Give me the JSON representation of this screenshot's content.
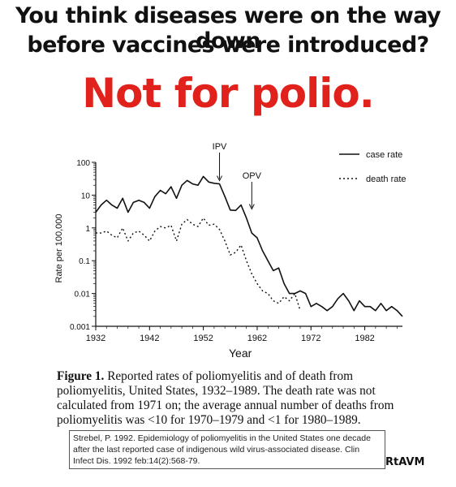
{
  "headline": {
    "line1": "You think diseases were on the way down",
    "line2": "before vaccines were introduced?",
    "line3": "Not for polio."
  },
  "chart_data": {
    "type": "line",
    "ylabel": "Rate per 100,000",
    "xlabel": "Year",
    "xlim": [
      1932,
      1989
    ],
    "ylim": [
      0.001,
      100
    ],
    "yscale": "log",
    "x_ticks": [
      "1932",
      "1942",
      "1952",
      "1962",
      "1972",
      "1982"
    ],
    "y_ticks": [
      "100",
      "10",
      "1",
      "0.1",
      "0.01",
      "0.001"
    ],
    "legend_placement": "top-right",
    "annotations": [
      {
        "text": "IPV",
        "x": 1955,
        "y": 22
      },
      {
        "text": "OPV",
        "x": 1961,
        "y": 3
      }
    ],
    "series": [
      {
        "name": "case rate",
        "style": "solid",
        "x": [
          1932,
          1933,
          1934,
          1935,
          1936,
          1937,
          1938,
          1939,
          1940,
          1941,
          1942,
          1943,
          1944,
          1945,
          1946,
          1947,
          1948,
          1949,
          1950,
          1951,
          1952,
          1953,
          1954,
          1955,
          1956,
          1957,
          1958,
          1959,
          1960,
          1961,
          1962,
          1963,
          1964,
          1965,
          1966,
          1967,
          1968,
          1969,
          1970,
          1971,
          1972,
          1973,
          1974,
          1975,
          1976,
          1977,
          1978,
          1979,
          1980,
          1981,
          1982,
          1983,
          1984,
          1985,
          1986,
          1987,
          1988,
          1989
        ],
        "y": [
          3,
          5,
          7,
          5,
          4,
          8,
          3,
          6,
          7,
          6,
          4,
          9,
          14,
          11,
          18,
          8,
          20,
          28,
          22,
          20,
          37,
          25,
          23,
          22,
          9,
          3.5,
          3.4,
          5,
          2,
          0.7,
          0.5,
          0.2,
          0.1,
          0.05,
          0.06,
          0.02,
          0.01,
          0.01,
          0.012,
          0.01,
          0.004,
          0.005,
          0.004,
          0.003,
          0.004,
          0.007,
          0.01,
          0.006,
          0.003,
          0.006,
          0.004,
          0.004,
          0.003,
          0.005,
          0.003,
          0.004,
          0.003,
          0.002
        ]
      },
      {
        "name": "death rate",
        "style": "dotted",
        "x": [
          1932,
          1933,
          1934,
          1935,
          1936,
          1937,
          1938,
          1939,
          1940,
          1941,
          1942,
          1943,
          1944,
          1945,
          1946,
          1947,
          1948,
          1949,
          1950,
          1951,
          1952,
          1953,
          1954,
          1955,
          1956,
          1957,
          1958,
          1959,
          1960,
          1961,
          1962,
          1963,
          1964,
          1965,
          1966,
          1967,
          1968,
          1969,
          1970
        ],
        "y": [
          0.7,
          0.7,
          0.8,
          0.6,
          0.5,
          1,
          0.4,
          0.7,
          0.8,
          0.6,
          0.4,
          0.8,
          1.1,
          1,
          1.2,
          0.4,
          1.3,
          1.8,
          1.3,
          1.1,
          2,
          1.2,
          1.3,
          0.9,
          0.4,
          0.15,
          0.18,
          0.3,
          0.1,
          0.04,
          0.02,
          0.012,
          0.01,
          0.006,
          0.005,
          0.008,
          0.006,
          0.01,
          0.003
        ]
      }
    ]
  },
  "caption": {
    "label": "Figure 1.",
    "text": "Reported rates of poliomyelitis and of death from poliomyelitis, United States, 1932–1989. The death rate was not calculated from 1971 on; the average annual number of deaths from poliomyelitis was <10 for 1970–1979 and <1 for 1980–1989."
  },
  "citation": "Strebel, P. 1992. Epidemiology of poliomyelitis in the United States one decade after the last reported case of indigenous wild virus-associated disease. Clin Infect Dis. 1992 feb:14(2):568-79.",
  "credit": "RtAVM"
}
